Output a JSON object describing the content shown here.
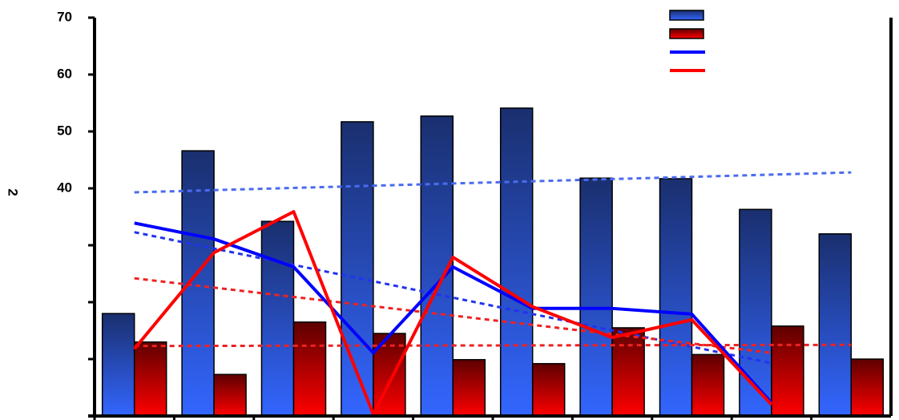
{
  "chart_data": {
    "type": "bar",
    "ylabel": "2",
    "categories": [
      null,
      null,
      null,
      null,
      null,
      null,
      null,
      null,
      null,
      null
    ],
    "ylim": [
      0,
      70
    ],
    "yticks": [
      {
        "value": 0,
        "label": null
      },
      {
        "value": 10,
        "label": null
      },
      {
        "value": 20,
        "label": null
      },
      {
        "value": 30,
        "label": null
      },
      40,
      50,
      60,
      70
    ],
    "series": [
      {
        "type": "bar",
        "color": "#3366ff",
        "values": [
          18.0,
          46.6,
          34.2,
          51.7,
          52.7,
          54.1,
          41.8,
          41.7,
          36.3,
          32.0
        ]
      },
      {
        "type": "bar",
        "color": "#ff0000",
        "values": [
          13.0,
          7.3,
          16.5,
          14.5,
          9.9,
          9.2,
          15.5,
          10.8,
          15.8,
          10.0
        ]
      },
      {
        "type": "line",
        "color": "#0000ff",
        "values": [
          33.9,
          31.1,
          26.2,
          11.1,
          26.2,
          18.9,
          18.9,
          17.9,
          2.3,
          null
        ]
      },
      {
        "type": "line",
        "color": "#ff0000",
        "values": [
          11.8,
          28.7,
          35.9,
          0.3,
          27.9,
          19.2,
          13.8,
          16.9,
          2.0,
          null
        ]
      }
    ],
    "trendlines": [
      {
        "color": "#4a6cf0",
        "from": 0,
        "to": 9,
        "values": [
          39.3,
          42.8
        ]
      },
      {
        "color": "#2233ee",
        "from": 0,
        "to": 8,
        "values": [
          32.3,
          9.3
        ]
      },
      {
        "color": "#ee2222",
        "from": 0,
        "to": 8,
        "values": [
          24.2,
          11.1
        ]
      },
      {
        "color": "#ee2222",
        "from": 0,
        "to": 9,
        "values": [
          12.3,
          12.5
        ]
      }
    ]
  }
}
